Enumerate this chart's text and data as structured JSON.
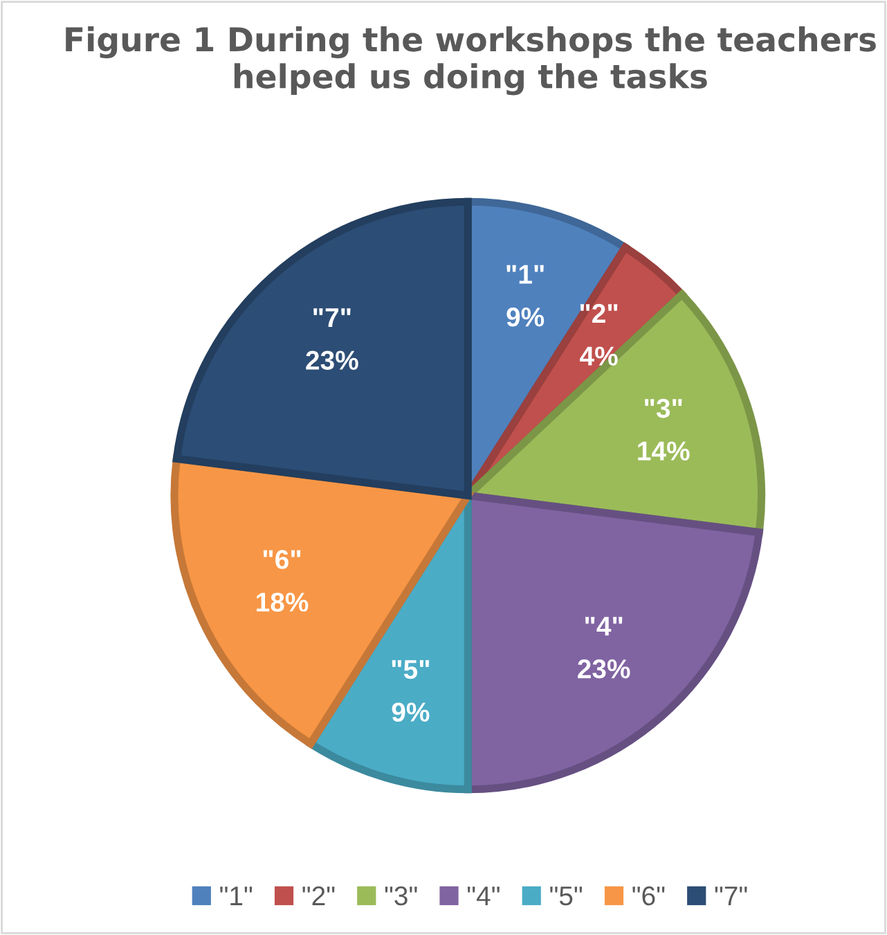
{
  "chart_data": {
    "type": "pie",
    "title": "Figure 1 During the workshops the teachers helped us doing the tasks",
    "categories": [
      "\"1\"",
      "\"2\"",
      "\"3\"",
      "\"4\"",
      "\"5\"",
      "\"6\"",
      "\"7\""
    ],
    "values": [
      9,
      4,
      14,
      23,
      9,
      18,
      23
    ],
    "value_labels": [
      "9%",
      "4%",
      "14%",
      "23%",
      "9%",
      "18%",
      "23%"
    ],
    "colors": [
      "#4f81bd",
      "#c0504d",
      "#9bbb59",
      "#8064a2",
      "#4bacc6",
      "#f79646",
      "#2c4d75"
    ],
    "legend": "bottom"
  }
}
